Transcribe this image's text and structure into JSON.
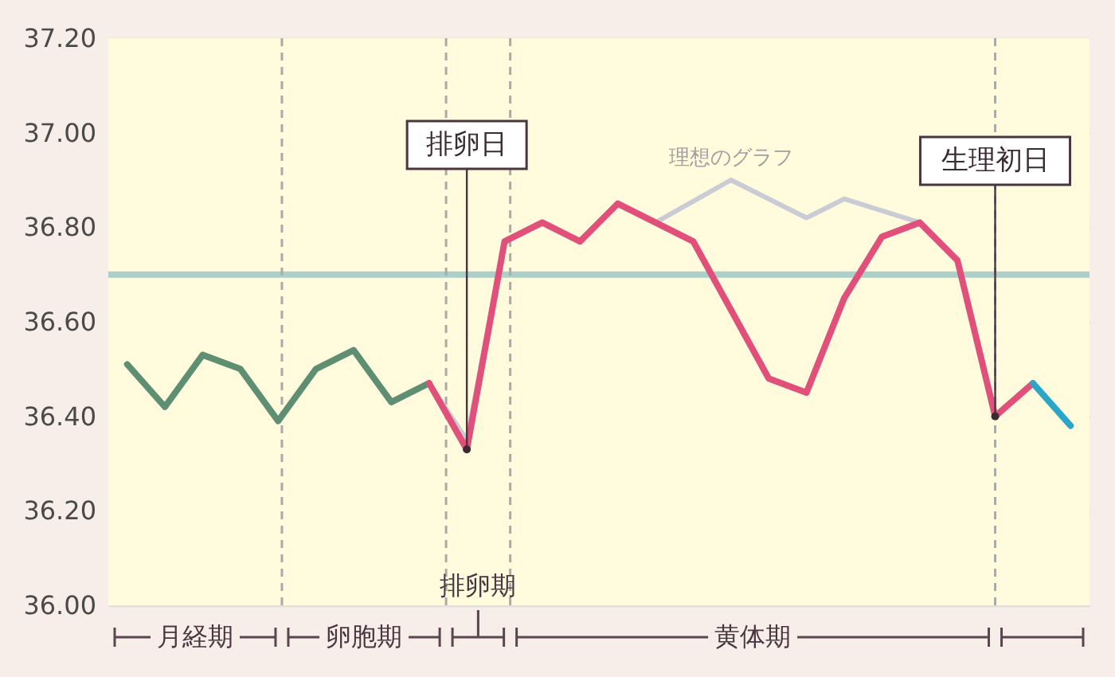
{
  "chart_data": {
    "type": "line",
    "ylim": [
      36.0,
      37.2
    ],
    "categories": [
      null,
      null,
      null,
      null,
      null,
      null,
      null,
      null,
      null,
      null,
      null,
      null,
      null,
      null,
      null,
      null,
      null,
      null,
      null,
      null,
      null,
      null,
      null,
      null,
      null,
      null
    ],
    "yticks": [
      {
        "value": 36.0,
        "label": "36.00"
      },
      {
        "value": 36.2,
        "label": "36.20"
      },
      {
        "value": 36.4,
        "label": "36.40"
      },
      {
        "value": 36.6,
        "label": "36.60"
      },
      {
        "value": 36.8,
        "label": "36.80"
      },
      {
        "value": 37.0,
        "label": "37.00"
      },
      {
        "value": 37.2,
        "label": "37.20"
      }
    ],
    "series": [
      {
        "name": "理想のグラフ",
        "color": "#c9ccd4",
        "values": [
          36.51,
          36.42,
          36.53,
          36.5,
          36.39,
          36.5,
          36.54,
          36.43,
          36.47,
          36.35,
          36.77,
          36.81,
          36.77,
          36.85,
          36.81,
          null,
          36.9,
          null,
          36.82,
          36.86,
          null,
          36.81,
          36.73,
          36.4,
          36.47,
          null
        ]
      },
      {
        "color": "#5f8f73",
        "values": [
          36.51,
          36.42,
          36.53,
          36.5,
          36.39,
          36.5,
          36.54,
          36.43,
          36.47,
          null,
          null,
          null,
          null,
          null,
          null,
          null,
          null,
          null,
          null,
          null,
          null,
          null,
          null,
          null,
          null,
          null
        ]
      },
      {
        "color": "#e0507a",
        "values": [
          null,
          null,
          null,
          null,
          null,
          null,
          null,
          null,
          36.47,
          36.33,
          36.77,
          36.81,
          36.77,
          36.85,
          36.81,
          36.77,
          null,
          36.48,
          36.45,
          36.65,
          36.78,
          36.81,
          36.73,
          36.4,
          36.47,
          null
        ]
      },
      {
        "color": "#2aa6c8",
        "values": [
          null,
          null,
          null,
          null,
          null,
          null,
          null,
          null,
          null,
          null,
          null,
          null,
          null,
          null,
          null,
          null,
          null,
          null,
          null,
          null,
          null,
          null,
          null,
          null,
          36.47,
          36.38
        ]
      }
    ],
    "ref_lines": [
      {
        "axis": "y",
        "value": 36.7,
        "color": "#acd0c9",
        "line_style": "solid"
      }
    ],
    "annotations": [
      {
        "text": "排卵日",
        "y": 36.33
      },
      {
        "text": "生理初日",
        "y": 36.4
      },
      "月経期",
      "卵胞期",
      "排卵期",
      "黄体期"
    ],
    "grid": "y",
    "tick_labels": "y",
    "line_style": "solid"
  }
}
